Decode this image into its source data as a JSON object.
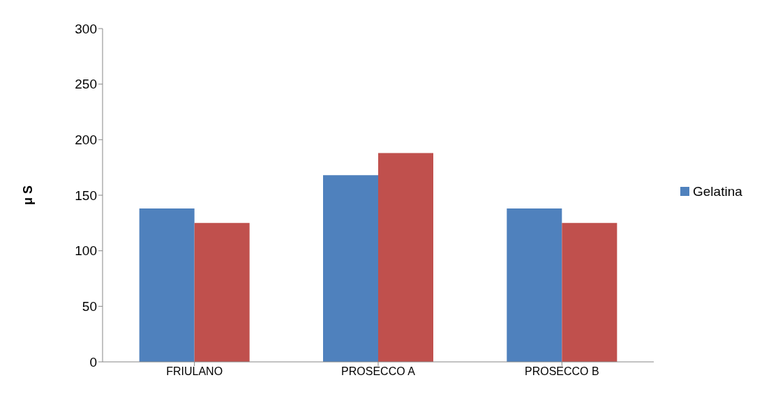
{
  "chart_data": {
    "type": "bar",
    "ylabel": "μ S",
    "categories": [
      "FRIULANO",
      "PROSECCO A",
      "PROSECCO B"
    ],
    "series": [
      {
        "name": "Gelatina",
        "color": "#4f81bd",
        "values": [
          138,
          168,
          138
        ]
      },
      {
        "color": "#c0504d",
        "values": [
          125,
          188,
          125
        ]
      }
    ],
    "ylim": [
      0,
      300
    ],
    "yticks": [
      0,
      50,
      100,
      150,
      200,
      250,
      300
    ],
    "grid": false,
    "legend": "right"
  }
}
